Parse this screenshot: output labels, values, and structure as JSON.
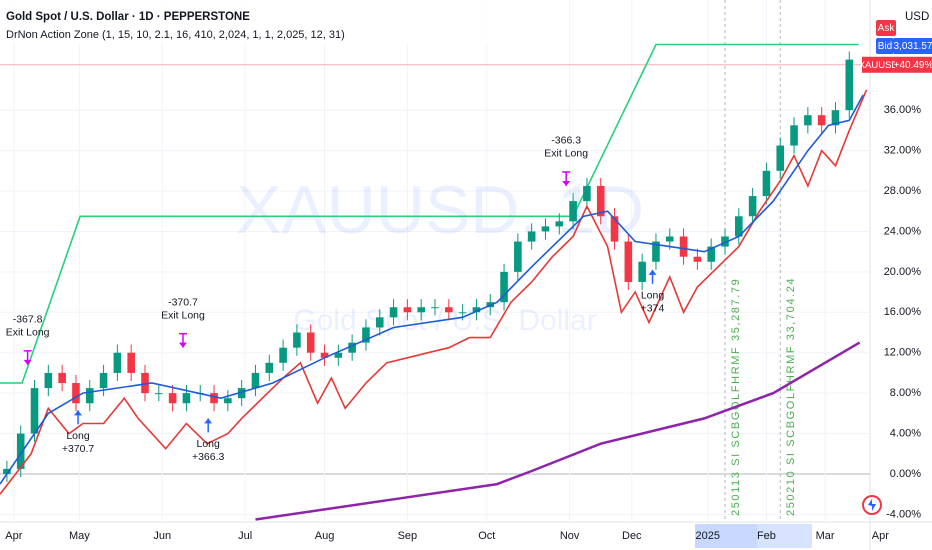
{
  "header": {
    "title": "Gold Spot / U.S. Dollar · 1D · PEPPERSTONE",
    "indicator": "DrNon Action Zone (1, 15, 10, 2.1, 16, 410, 2,024, 1, 1, 2,025, 12, 31)"
  },
  "watermark": {
    "symbol": "XAUUSD, 1D",
    "name": "Gold Spot / U.S. Dollar"
  },
  "price_scale": {
    "currency": "USD",
    "ask": "Ask",
    "bid": "Bid",
    "bid_price": "3,031.57",
    "symbol": "XAUUSD",
    "last": {
      "value": 40.49,
      "label": "+40.49%"
    }
  },
  "chart_data": {
    "type": "candlestick",
    "grid": true,
    "up_color": "#089981",
    "down_color": "#f23645",
    "xlim": [
      -4,
      248
    ],
    "ylim": [
      -4.75,
      46.9
    ],
    "xticks": [
      {
        "value": 0,
        "label": "Apr"
      },
      {
        "value": 19,
        "label": "May"
      },
      {
        "value": 43,
        "label": "Jun"
      },
      {
        "value": 67,
        "label": "Jul"
      },
      {
        "value": 90,
        "label": "Aug"
      },
      {
        "value": 114,
        "label": "Sep"
      },
      {
        "value": 137,
        "label": "Oct"
      },
      {
        "value": 161,
        "label": "Nov"
      },
      {
        "value": 179,
        "label": "Dec"
      },
      {
        "value": 201,
        "label": "2025"
      },
      {
        "value": 218,
        "label": "Feb"
      },
      {
        "value": 235,
        "label": "Mar"
      },
      {
        "value": 251,
        "label": "Apr"
      }
    ],
    "yticks": [
      {
        "value": 36,
        "label": "36.00%"
      },
      {
        "value": 32,
        "label": "32.00%"
      },
      {
        "value": 28,
        "label": "28.00%"
      },
      {
        "value": 24,
        "label": "24.00%"
      },
      {
        "value": 20,
        "label": "20.00%"
      },
      {
        "value": 16,
        "label": "16.00%"
      },
      {
        "value": 12,
        "label": "12.00%"
      },
      {
        "value": 8,
        "label": "8.00%"
      },
      {
        "value": 4,
        "label": "4.00%"
      },
      {
        "value": 0,
        "label": "0.00%"
      },
      {
        "value": -4,
        "label": "-4.00%"
      }
    ],
    "x": [
      -2,
      2,
      6,
      10,
      14,
      18,
      22,
      26,
      30,
      34,
      38,
      42,
      46,
      50,
      54,
      58,
      62,
      66,
      70,
      74,
      78,
      82,
      86,
      90,
      94,
      98,
      102,
      106,
      110,
      114,
      118,
      122,
      126,
      130,
      134,
      138,
      142,
      146,
      150,
      154,
      158,
      162,
      166,
      170,
      174,
      178,
      182,
      186,
      190,
      194,
      198,
      202,
      206,
      210,
      214,
      218,
      222,
      226,
      230,
      234,
      238,
      242
    ],
    "open": [
      0,
      0.5,
      4,
      8.5,
      10,
      9,
      7,
      8.5,
      10,
      12,
      10,
      8,
      8,
      7,
      8,
      8,
      7,
      7.5,
      8.5,
      10,
      11,
      12.5,
      14,
      12,
      11.5,
      12,
      13,
      14.5,
      15.5,
      16.5,
      16,
      16.5,
      16.5,
      16,
      16,
      16.5,
      17,
      20,
      23,
      24,
      24.5,
      25,
      27,
      28.5,
      25.5,
      23,
      19,
      21,
      23,
      23.5,
      21.5,
      21,
      22.5,
      23.5,
      25.5,
      27.5,
      30,
      32.5,
      34.5,
      35.5,
      34.5,
      36
    ],
    "high": [
      1.3,
      4.8,
      9.3,
      10.8,
      10.8,
      9.8,
      9.3,
      10.8,
      12.8,
      12.8,
      10.8,
      8.8,
      8.8,
      8.8,
      8.8,
      8.8,
      8.3,
      9.3,
      10.8,
      11.8,
      13.3,
      14.8,
      14.8,
      12.8,
      12.8,
      13.8,
      15.3,
      16.3,
      17.3,
      17.3,
      17.3,
      17.3,
      17.3,
      16.8,
      17.3,
      17.8,
      20.8,
      23.8,
      24.8,
      25.3,
      25.8,
      27.8,
      29.3,
      29.3,
      26.3,
      23.8,
      21.8,
      23.8,
      24.3,
      24.3,
      22.3,
      23.3,
      24.3,
      26.3,
      28.3,
      30.8,
      33.3,
      35.3,
      36.3,
      36.3,
      36.8,
      41.8
    ],
    "low": [
      -0.8,
      -0.3,
      3.2,
      7.7,
      8.2,
      6.2,
      6.2,
      7.7,
      9.2,
      9.2,
      7.2,
      7.2,
      6.2,
      6.2,
      7.2,
      6.2,
      6.2,
      6.7,
      7.7,
      9.2,
      10.2,
      11.7,
      11.2,
      10.7,
      10.7,
      11.2,
      12.2,
      13.7,
      14.7,
      15.2,
      15.2,
      15.7,
      15.2,
      15.2,
      15.2,
      15.7,
      16.2,
      19.2,
      22.2,
      23.2,
      23.7,
      24.2,
      26.2,
      24.7,
      22.2,
      18.2,
      18.2,
      20.2,
      22.2,
      20.7,
      20.2,
      20.2,
      21.7,
      22.7,
      24.7,
      26.7,
      29.2,
      31.7,
      33.7,
      33.7,
      33.7,
      35.2
    ],
    "close": [
      0.5,
      4,
      8.5,
      10,
      9,
      7,
      8.5,
      10,
      12,
      10,
      8,
      8,
      7,
      8,
      8,
      7,
      7.5,
      8.5,
      10,
      11,
      12.5,
      14,
      12,
      11.5,
      12,
      13,
      14.5,
      15.5,
      16.5,
      16,
      16.5,
      16.5,
      16,
      16,
      16.5,
      17,
      20,
      23,
      24,
      24.5,
      25,
      27,
      28.5,
      25.5,
      23,
      19,
      21,
      23,
      23.5,
      21.5,
      21,
      22.5,
      23.5,
      25.5,
      27.5,
      30,
      32.5,
      34.5,
      35.5,
      34.5,
      36,
      41
    ],
    "series": [
      {
        "color": "#26d07c",
        "x": [
          -4,
          2.4,
          19.2,
          162,
          186,
          244.7
        ],
        "values": [
          9,
          9,
          25.5,
          25.5,
          42.5,
          42.5
        ]
      },
      {
        "color": "#8e24aa",
        "x": [
          70,
          110,
          140,
          150,
          170,
          200,
          220,
          245
        ],
        "values": [
          -4.5,
          -2.5,
          -1,
          0.3,
          3,
          5.5,
          8,
          13
        ]
      },
      {
        "color": "#e53935",
        "x": [
          -4,
          5,
          10,
          16,
          20,
          26,
          32,
          36,
          44,
          50,
          56,
          62,
          66,
          72,
          78,
          83,
          88,
          92,
          96,
          102,
          108,
          114,
          120,
          126,
          132,
          138,
          144,
          150,
          156,
          162,
          166,
          172,
          176,
          180,
          184,
          190,
          194,
          198,
          204,
          210,
          216,
          222,
          226,
          230,
          234,
          238,
          242,
          247
        ],
        "values": [
          -2,
          2,
          6.5,
          4,
          5,
          5,
          7.5,
          5.5,
          2.5,
          5,
          3,
          4,
          5.5,
          7.5,
          9.5,
          11,
          7,
          9.5,
          6.5,
          9,
          11,
          11.5,
          12,
          12.5,
          13.5,
          13.5,
          17,
          19,
          21.5,
          23.5,
          26.5,
          22.5,
          16,
          18,
          15,
          19.5,
          16,
          18.5,
          20.5,
          22.5,
          26,
          29,
          31.5,
          28.5,
          32,
          30.5,
          34,
          38
        ]
      },
      {
        "color": "#1e5bd6",
        "x": [
          -4,
          10,
          20,
          40,
          60,
          75,
          90,
          110,
          130,
          140,
          150,
          165,
          172,
          180,
          190,
          200,
          210,
          220,
          230,
          236,
          242,
          246
        ],
        "values": [
          -1,
          6,
          8,
          9,
          7.5,
          9,
          11.5,
          14.5,
          15.5,
          17,
          20.5,
          25.5,
          26,
          23,
          22.5,
          22,
          23.5,
          27,
          32,
          34.5,
          35,
          37.5
        ]
      }
    ],
    "annotations": [
      {
        "x": 4,
        "y": 10.8,
        "arrow": "down",
        "color": "#d500f9",
        "lines": [
          "-367.8",
          "Exit Long"
        ]
      },
      {
        "x": 18.6,
        "y": 6.3,
        "arrow": "up",
        "color": "#2962ff",
        "lines": [
          "Long",
          "+370.7"
        ]
      },
      {
        "x": 49,
        "y": 12.5,
        "arrow": "down",
        "color": "#d500f9",
        "lines": [
          "-370.7",
          "Exit Long"
        ]
      },
      {
        "x": 56.3,
        "y": 5.5,
        "arrow": "up",
        "color": "#2962ff",
        "lines": [
          "Long",
          "+366.3"
        ]
      },
      {
        "x": 160,
        "y": 28.5,
        "arrow": "down",
        "color": "#d500f9",
        "lines": [
          "-366.3",
          "Exit Long"
        ]
      },
      {
        "x": 185,
        "y": 20.2,
        "arrow": "up",
        "color": "#2962ff",
        "lines": [
          "Long",
          "+374"
        ]
      }
    ],
    "markers": [
      {
        "x": 206,
        "color": "#4caf50",
        "label": "250113 SI SCBGOLFHRMF 35,287.79"
      },
      {
        "x": 222,
        "color": "#4caf50",
        "label": "250210 SI SCBGOLFHRMF 33,704.24"
      }
    ]
  }
}
